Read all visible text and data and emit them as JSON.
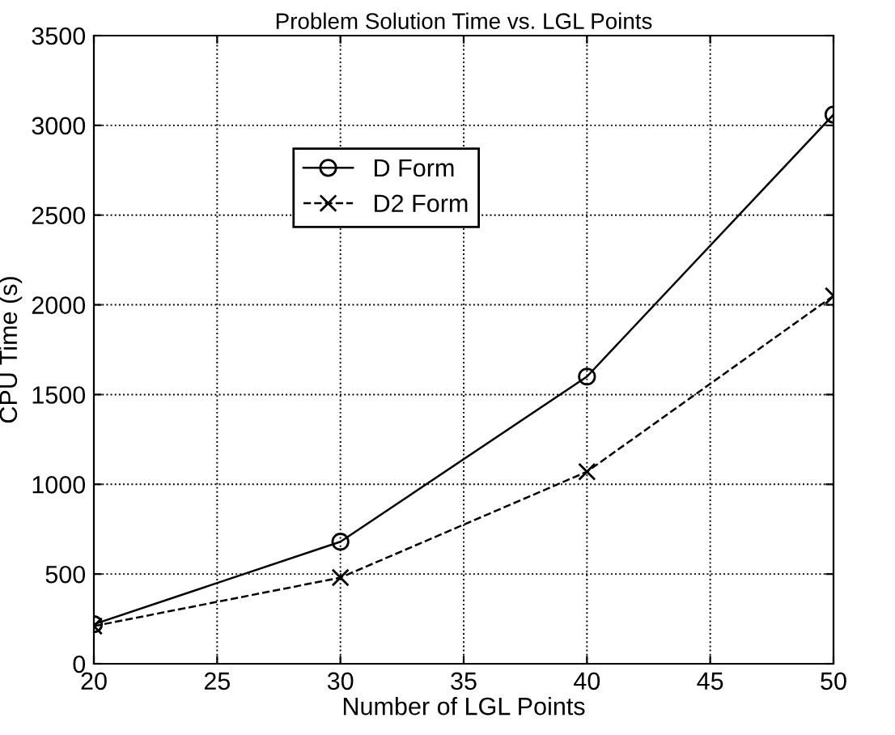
{
  "chart_data": {
    "type": "line",
    "title": "Problem Solution Time vs. LGL Points",
    "xlabel": "Number of LGL Points",
    "ylabel": "CPU Time (s)",
    "x": [
      20,
      30,
      40,
      50
    ],
    "series": [
      {
        "name": "D Form",
        "color": "#000000",
        "values": [
          220,
          680,
          1600,
          3060
        ],
        "marker": "circle",
        "line_style": "solid"
      },
      {
        "name": "D2 Form",
        "color": "#000000",
        "values": [
          210,
          480,
          1070,
          2050
        ],
        "marker": "cross",
        "line_style": "dashed"
      }
    ],
    "xlim": [
      20,
      50
    ],
    "xticks": [
      20,
      25,
      30,
      35,
      40,
      45,
      50
    ],
    "ylim": [
      0,
      3500
    ],
    "yticks": [
      0,
      500,
      1000,
      1500,
      2000,
      2500,
      3000,
      3500
    ],
    "grid": true,
    "legend": "top left"
  }
}
